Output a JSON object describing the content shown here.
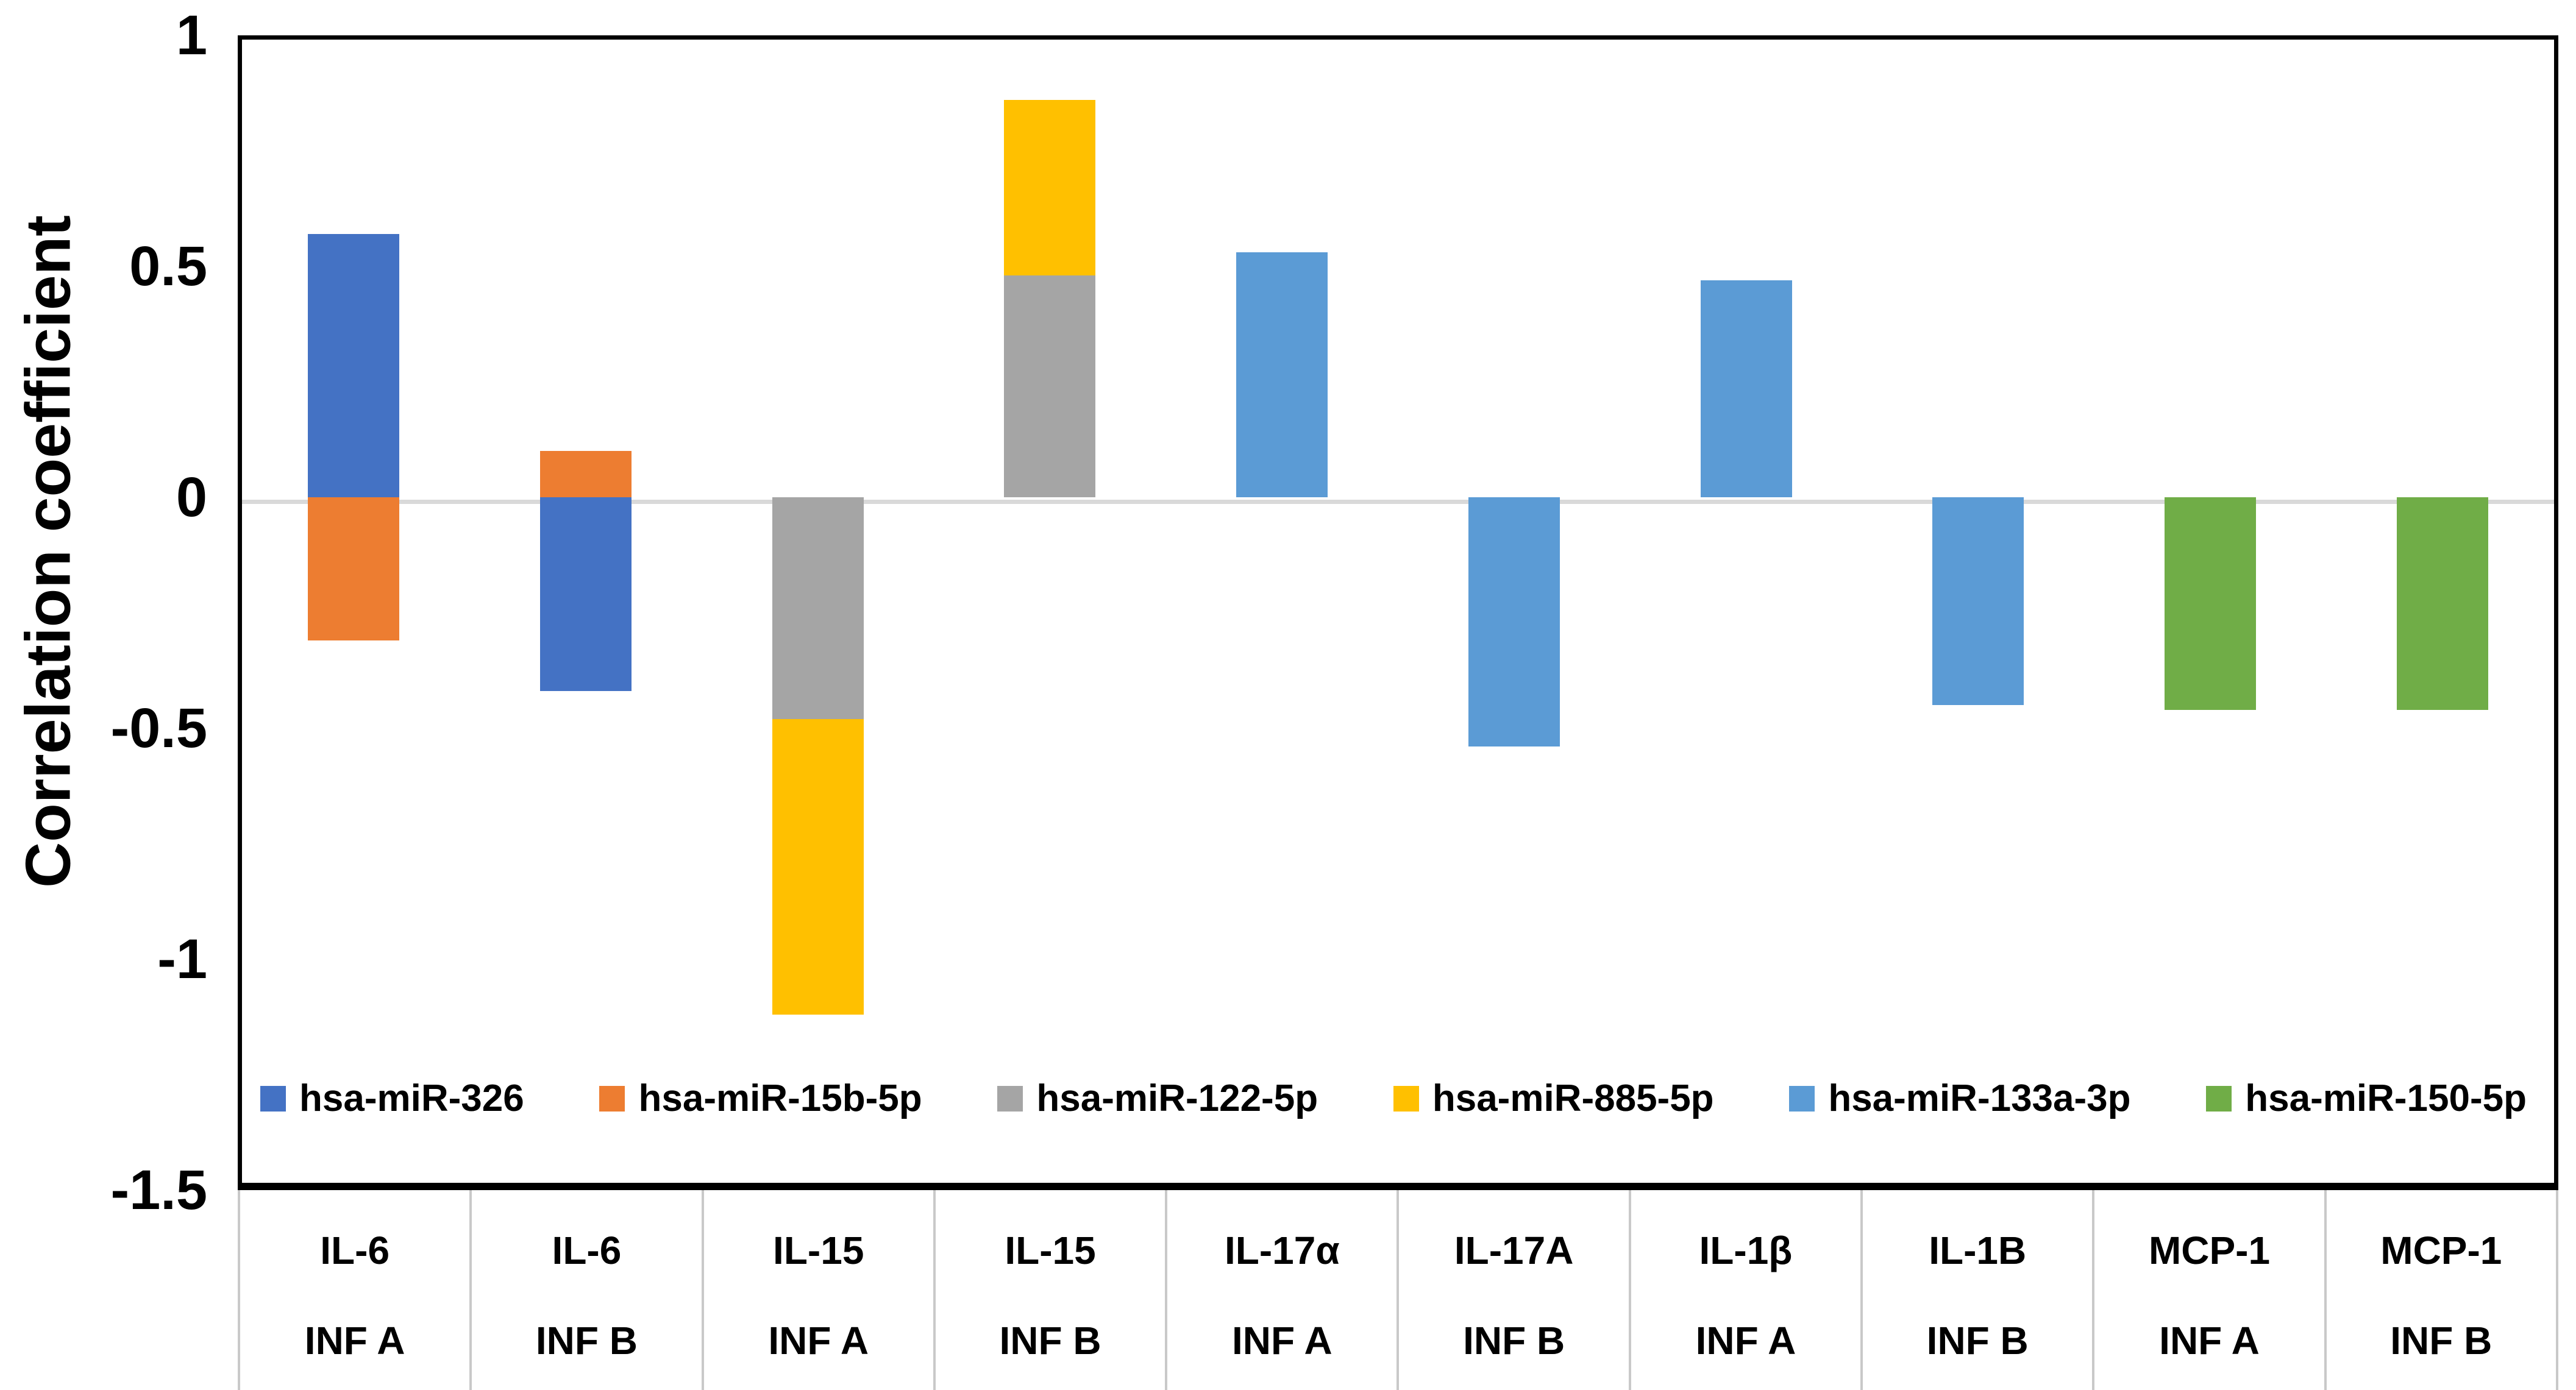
{
  "chart_data": {
    "type": "bar",
    "stacked": true,
    "title": "",
    "xlabel": "",
    "ylabel": "Correlation coefficient",
    "ylim": [
      -1.5,
      1
    ],
    "yticks": [
      1,
      0.5,
      0,
      -0.5,
      -1,
      -1.5
    ],
    "ytick_labels": [
      "1",
      "0.5",
      "0",
      "-0.5",
      "-1",
      "-1.5"
    ],
    "grid": "zero-baseline-only",
    "legend_position": "inside-bottom",
    "categories": [
      {
        "cytokine": "IL-6",
        "condition": "INF A"
      },
      {
        "cytokine": "IL-6",
        "condition": "INF B"
      },
      {
        "cytokine": "IL-15",
        "condition": "INF A"
      },
      {
        "cytokine": "IL-15",
        "condition": "INF B"
      },
      {
        "cytokine": "IL-17α",
        "condition": "INF A"
      },
      {
        "cytokine": "IL-17A",
        "condition": "INF B"
      },
      {
        "cytokine": "IL-1β",
        "condition": "INF A"
      },
      {
        "cytokine": "IL-1B",
        "condition": "INF B"
      },
      {
        "cytokine": "MCP-1",
        "condition": "INF A"
      },
      {
        "cytokine": "MCP-1",
        "condition": "INF B"
      }
    ],
    "series": [
      {
        "name": "hsa-miR-326",
        "color": "#4472C4"
      },
      {
        "name": "hsa-miR-15b-5p",
        "color": "#ED7D31"
      },
      {
        "name": "hsa-miR-122-5p",
        "color": "#A5A5A5"
      },
      {
        "name": "hsa-miR-885-5p",
        "color": "#FFC000"
      },
      {
        "name": "hsa-miR-133a-3p",
        "color": "#5B9BD5"
      },
      {
        "name": "hsa-miR-150-5p",
        "color": "#70AD47"
      }
    ],
    "bars": [
      {
        "category": "IL-6 INF A",
        "segments": [
          {
            "series": "hsa-miR-326",
            "value": 0.57
          },
          {
            "series": "hsa-miR-15b-5p",
            "value": -0.31
          }
        ]
      },
      {
        "category": "IL-6 INF B",
        "segments": [
          {
            "series": "hsa-miR-15b-5p",
            "value": 0.1
          },
          {
            "series": "hsa-miR-326",
            "value": -0.42
          }
        ]
      },
      {
        "category": "IL-15 INF A",
        "segments": [
          {
            "series": "hsa-miR-122-5p",
            "value": -0.48
          },
          {
            "series": "hsa-miR-885-5p",
            "value": -0.64
          }
        ]
      },
      {
        "category": "IL-15 INF B",
        "segments": [
          {
            "series": "hsa-miR-122-5p",
            "value": 0.48
          },
          {
            "series": "hsa-miR-885-5p",
            "value": 0.38
          }
        ]
      },
      {
        "category": "IL-17α INF A",
        "segments": [
          {
            "series": "hsa-miR-133a-3p",
            "value": 0.53
          }
        ]
      },
      {
        "category": "IL-17A INF B",
        "segments": [
          {
            "series": "hsa-miR-133a-3p",
            "value": -0.54
          }
        ]
      },
      {
        "category": "IL-1β INF A",
        "segments": [
          {
            "series": "hsa-miR-133a-3p",
            "value": 0.47
          }
        ]
      },
      {
        "category": "IL-1B INF B",
        "segments": [
          {
            "series": "hsa-miR-133a-3p",
            "value": -0.45
          }
        ]
      },
      {
        "category": "MCP-1 INF A",
        "segments": [
          {
            "series": "hsa-miR-150-5p",
            "value": -0.46
          }
        ]
      },
      {
        "category": "MCP-1 INF B",
        "segments": [
          {
            "series": "hsa-miR-150-5p",
            "value": -0.46
          }
        ]
      }
    ]
  }
}
